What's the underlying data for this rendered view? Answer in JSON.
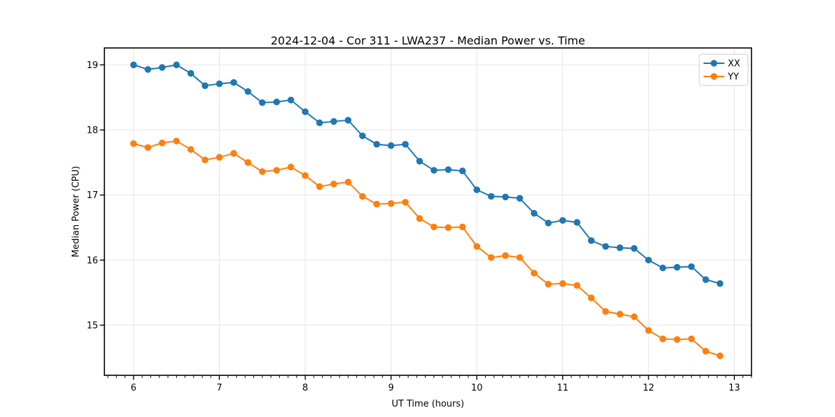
{
  "figure": {
    "background": "#ffffff",
    "grid_color": "#e4e4e4",
    "spine_color": "#000000",
    "text_color": "#000000",
    "legend_border_color": "#cccccc",
    "legend_background": "rgba(255,255,255,0.85)"
  },
  "chart_data": {
    "type": "line",
    "title": "2024-12-04 - Cor 311 - LWA237 - Median Power vs. Time",
    "xlabel": "UT Time (hours)",
    "ylabel": "Median Power (CPU)",
    "xlim": [
      5.66,
      13.2
    ],
    "ylim": [
      14.23,
      19.26
    ],
    "xticks": [
      6,
      7,
      8,
      9,
      10,
      11,
      12,
      13
    ],
    "yticks": [
      15,
      16,
      17,
      18,
      19
    ],
    "x_minor_tick_step": 0.1,
    "grid": true,
    "legend_position": "upper right",
    "legend_labels": [
      "XX",
      "YY"
    ],
    "x": [
      6.0,
      6.167,
      6.333,
      6.5,
      6.667,
      6.833,
      7.0,
      7.167,
      7.333,
      7.5,
      7.667,
      7.833,
      8.0,
      8.167,
      8.333,
      8.5,
      8.667,
      8.833,
      9.0,
      9.167,
      9.333,
      9.5,
      9.667,
      9.833,
      10.0,
      10.167,
      10.333,
      10.5,
      10.667,
      10.833,
      11.0,
      11.167,
      11.333,
      11.5,
      11.667,
      11.833,
      12.0,
      12.167,
      12.333,
      12.5,
      12.667,
      12.833
    ],
    "series": [
      {
        "name": "XX",
        "color": "#1f77b4",
        "values": [
          19.0,
          18.93,
          18.96,
          19.0,
          18.87,
          18.68,
          18.71,
          18.73,
          18.59,
          18.42,
          18.43,
          18.46,
          18.28,
          18.11,
          18.13,
          18.15,
          17.91,
          17.78,
          17.76,
          17.78,
          17.52,
          17.38,
          17.39,
          17.37,
          17.08,
          16.98,
          16.97,
          16.95,
          16.72,
          16.57,
          16.61,
          16.58,
          16.3,
          16.21,
          16.19,
          16.18,
          16.0,
          15.88,
          15.89,
          15.9,
          15.7,
          15.64
        ]
      },
      {
        "name": "YY",
        "color": "#ff7f0e",
        "values": [
          17.79,
          17.73,
          17.8,
          17.83,
          17.7,
          17.54,
          17.58,
          17.64,
          17.5,
          17.36,
          17.38,
          17.43,
          17.3,
          17.13,
          17.17,
          17.2,
          16.98,
          16.86,
          16.87,
          16.89,
          16.64,
          16.51,
          16.5,
          16.51,
          16.21,
          16.04,
          16.07,
          16.04,
          15.8,
          15.63,
          15.64,
          15.61,
          15.42,
          15.21,
          15.17,
          15.13,
          14.92,
          14.79,
          14.78,
          14.79,
          14.6,
          14.53
        ]
      }
    ]
  }
}
